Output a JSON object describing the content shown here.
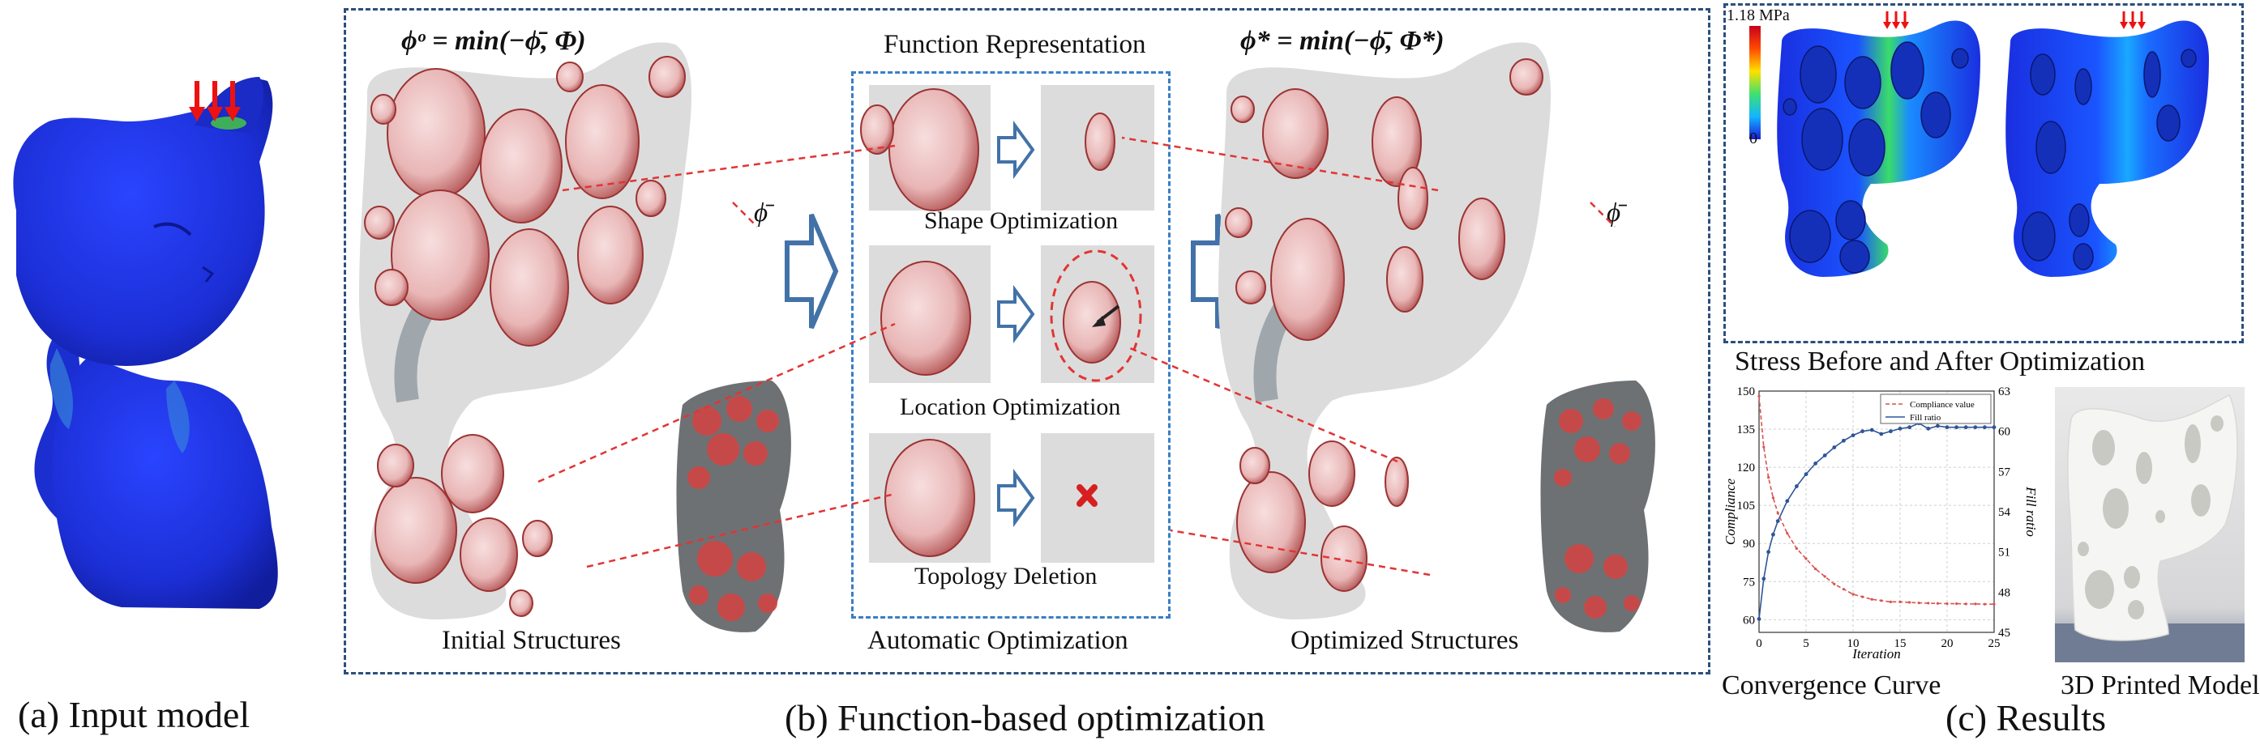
{
  "panel_a": {
    "caption": "(a) Input model"
  },
  "panel_b": {
    "caption": "(b) Function-based optimization",
    "formula_left": "ϕᵒ = min(−ϕ̄, Φ)",
    "formula_right": "ϕ* = min(−ϕ̄, Φ*)",
    "phi_bar_left": "ϕ̄",
    "phi_bar_right": "ϕ̄",
    "function_representation": "Function Representation",
    "shape_optimization": "Shape Optimization",
    "location_optimization": "Location Optimization",
    "topology_deletion": "Topology Deletion",
    "initial_structures": "Initial Structures",
    "automatic_optimization": "Automatic Optimization",
    "optimized_structures": "Optimized Structures"
  },
  "panel_c": {
    "caption": "(c) Results",
    "stress_title": "Stress Before and After Optimization",
    "colorbar_max": "1.18 MPa",
    "colorbar_min": "0",
    "convergence_label": "Convergence Curve",
    "printed_label": "3D Printed Model"
  },
  "chart_data": {
    "type": "line",
    "xlabel": "Iteration",
    "ylabel": "Compliance",
    "y2label": "Fill ratio",
    "xlim": [
      0,
      25
    ],
    "ylim": [
      55,
      150
    ],
    "y2lim": [
      45,
      63
    ],
    "x_ticks": [
      "0",
      "5",
      "10",
      "15",
      "20",
      "25"
    ],
    "y_ticks": [
      "60",
      "75",
      "90",
      "105",
      "120",
      "135",
      "150"
    ],
    "y2_ticks": [
      "45",
      "48",
      "51",
      "54",
      "57",
      "60",
      "63"
    ],
    "grid": true,
    "legend": "top-right",
    "series": [
      {
        "name": "Compliance value",
        "axis": "left",
        "color": "#d9534f",
        "x": [
          0,
          0.5,
          1,
          1.5,
          2,
          3,
          4,
          5,
          6,
          7,
          8,
          9,
          10,
          11,
          12,
          13,
          14,
          15,
          16,
          17,
          18,
          19,
          20,
          21,
          22,
          23,
          24,
          25
        ],
        "values": [
          148,
          128,
          116,
          108,
          102,
          94,
          88,
          84,
          80,
          77,
          74,
          72,
          70,
          69,
          68,
          67.5,
          67,
          67,
          66.8,
          66.6,
          66.5,
          66.4,
          66.3,
          66.3,
          66.2,
          66.2,
          66.1,
          66.1
        ]
      },
      {
        "name": "Fill ratio",
        "axis": "right",
        "color": "#2f5597",
        "x": [
          0,
          0.5,
          1,
          1.5,
          2,
          3,
          4,
          5,
          6,
          7,
          8,
          9,
          10,
          11,
          12,
          13,
          14,
          15,
          16,
          17,
          18,
          19,
          20,
          21,
          22,
          23,
          24,
          25
        ],
        "values": [
          46,
          49,
          51,
          52.3,
          53.3,
          54.8,
          55.9,
          56.8,
          57.6,
          58.2,
          58.8,
          59.3,
          59.7,
          60,
          60.1,
          59.8,
          60,
          60.2,
          60.3,
          60.6,
          60.2,
          60.4,
          60.3,
          60.3,
          60.3,
          60.3,
          60.3,
          60.3
        ]
      }
    ]
  },
  "colors": {
    "frame": "#2c4f7c",
    "inner_frame": "#3a7ec4",
    "hole_fill": "#f1c6c6",
    "hole_stroke": "#a23a3a",
    "cat_blue": "#1c31d8",
    "arrow_red": "#ee1111"
  }
}
